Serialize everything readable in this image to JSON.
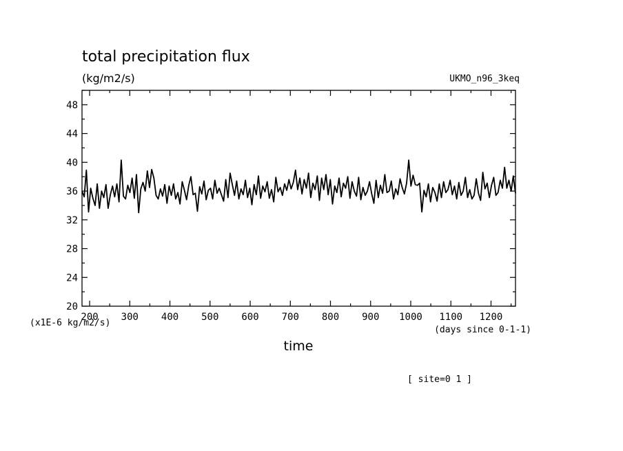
{
  "chart_data": {
    "type": "line",
    "title": "total precipitation flux",
    "units_label": "(kg/m2/s)",
    "model": "UKMO_n96_3keq",
    "xlabel": "time",
    "x_units": "(days since 0-1-1)",
    "y_scale_label": "(x1E-6 kg/m2/s)",
    "annotation": "[ site=0 1 ]",
    "xlim": [
      181,
      1261
    ],
    "ylim": [
      20,
      50
    ],
    "x_ticks": [
      200,
      300,
      400,
      500,
      600,
      700,
      800,
      900,
      1000,
      1100,
      1200
    ],
    "y_ticks": [
      20,
      24,
      28,
      32,
      36,
      40,
      44,
      48
    ],
    "grid": false,
    "series": [
      {
        "values": [
          36.0,
          35.2,
          38.9,
          33.1,
          36.4,
          35.0,
          34.0,
          37.0,
          33.6,
          36.0,
          35.1,
          36.9,
          33.6,
          35.5,
          36.7,
          35.2,
          37.0,
          34.5,
          40.3,
          35.3,
          34.9,
          36.8,
          35.8,
          37.8,
          35.0,
          38.3,
          33.0,
          36.3,
          37.2,
          36.0,
          38.8,
          36.5,
          39.0,
          37.8,
          35.4,
          34.9,
          36.3,
          35.3,
          36.9,
          34.3,
          36.7,
          35.4,
          37.0,
          34.9,
          35.8,
          34.2,
          37.3,
          36.1,
          34.8,
          36.8,
          38.0,
          35.5,
          35.7,
          33.2,
          36.6,
          35.6,
          37.4,
          34.8,
          36.1,
          36.4,
          34.9,
          37.5,
          35.7,
          36.4,
          35.5,
          34.6,
          37.6,
          35.1,
          38.5,
          36.9,
          35.4,
          37.4,
          34.9,
          36.3,
          35.5,
          37.5,
          35.1,
          36.4,
          34.1,
          36.9,
          35.5,
          38.1,
          35.0,
          36.7,
          35.9,
          37.3,
          35.0,
          36.2,
          34.5,
          37.9,
          35.9,
          36.5,
          35.4,
          37.0,
          36.1,
          37.6,
          36.3,
          37.2,
          38.9,
          36.2,
          37.8,
          35.6,
          37.6,
          36.4,
          38.5,
          35.1,
          37.1,
          36.2,
          38.1,
          34.7,
          37.8,
          36.2,
          38.3,
          35.5,
          37.6,
          34.2,
          36.7,
          35.8,
          37.8,
          35.2,
          37.1,
          36.4,
          38.0,
          35.0,
          37.3,
          36.0,
          35.3,
          37.9,
          34.8,
          36.5,
          35.4,
          36.0,
          37.3,
          35.6,
          34.3,
          37.5,
          35.1,
          36.8,
          35.7,
          38.3,
          35.8,
          36.0,
          37.4,
          34.9,
          36.3,
          35.5,
          37.7,
          36.5,
          35.6,
          37.1,
          40.3,
          36.7,
          38.2,
          36.9,
          36.8,
          37.1,
          33.1,
          36.1,
          35.2,
          37.0,
          34.5,
          36.5,
          35.8,
          34.6,
          37.0,
          35.1,
          37.3,
          35.8,
          36.2,
          37.5,
          35.5,
          36.7,
          34.9,
          37.2,
          35.4,
          36.0,
          37.9,
          35.1,
          36.2,
          34.9,
          35.4,
          37.7,
          35.7,
          34.7,
          38.6,
          36.3,
          37.1,
          35.1,
          36.8,
          37.9,
          35.4,
          35.8,
          37.5,
          36.4,
          39.3,
          36.4,
          37.5,
          36.0,
          38.1,
          35.7
        ]
      }
    ]
  }
}
